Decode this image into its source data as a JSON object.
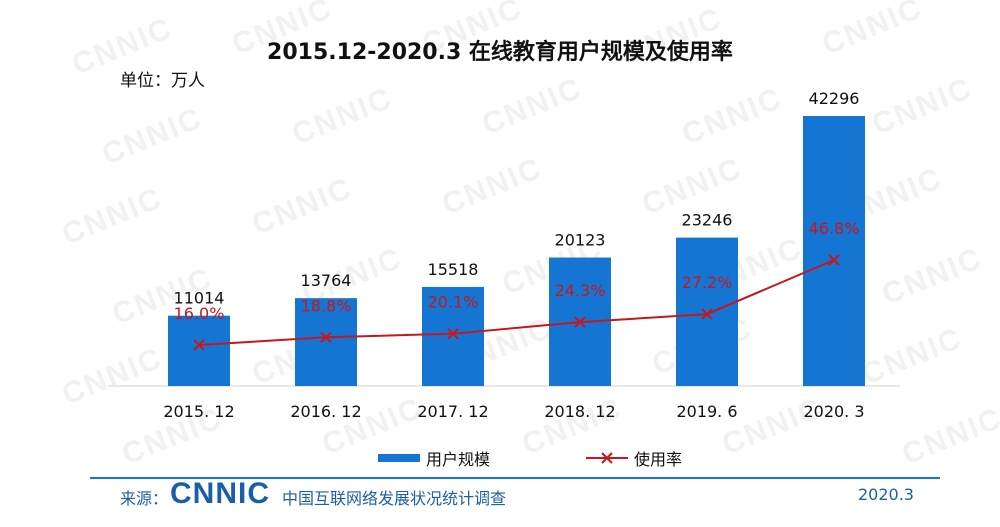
{
  "title": "2015.12-2020.3 在线教育用户规模及使用率",
  "unit_label": "单位：万人",
  "watermark_text": "CNNIC",
  "chart_data": {
    "type": "bar",
    "categories": [
      "2015. 12",
      "2016. 12",
      "2017. 12",
      "2018. 12",
      "2019. 6",
      "2020. 3"
    ],
    "series": [
      {
        "name": "用户规模",
        "kind": "bar",
        "values": [
          11014,
          13764,
          15518,
          20123,
          23246,
          42296
        ],
        "labels": [
          "11014",
          "13764",
          "15518",
          "20123",
          "23246",
          "42296"
        ],
        "color": "#1476d2"
      },
      {
        "name": "使用率",
        "kind": "line",
        "values": [
          16.0,
          18.8,
          20.1,
          24.3,
          27.2,
          46.8
        ],
        "labels": [
          "16.0%",
          "18.8%",
          "20.1%",
          "24.3%",
          "27.2%",
          "46.8%"
        ],
        "color": "#c8161d"
      }
    ],
    "legend_position": "bottom"
  },
  "footer": {
    "source_label": "来源：",
    "logo_text": "CNNIC",
    "description": "中国互联网络发展状况统计调查",
    "date": "2020.3"
  }
}
